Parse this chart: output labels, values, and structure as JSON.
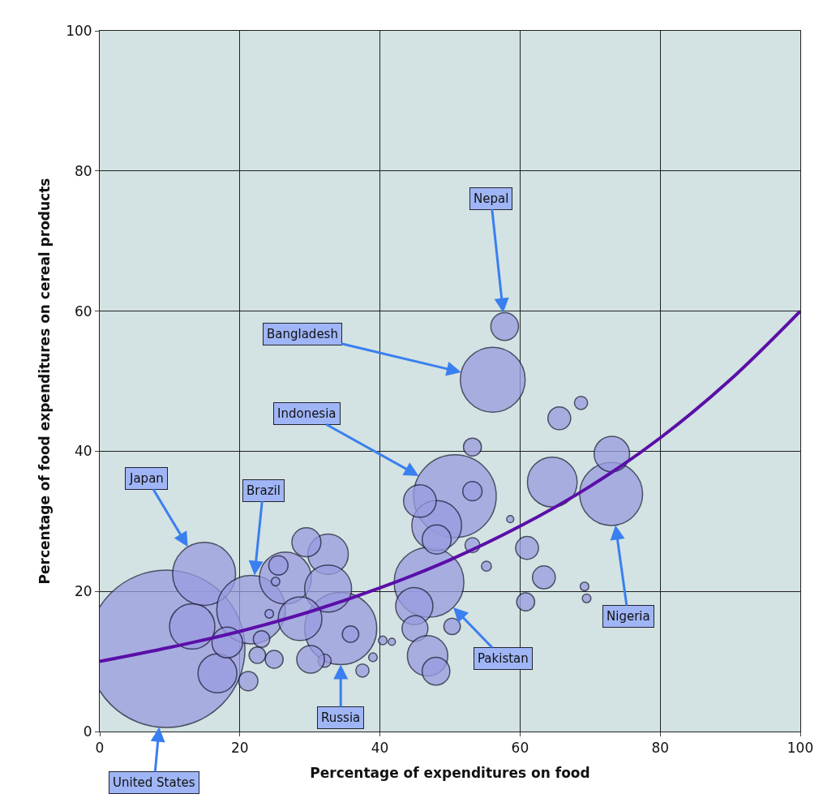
{
  "chart_data": {
    "type": "bubble",
    "xlabel": "Percentage of expenditures on food",
    "ylabel": "Percentage of food expenditures on cereal products",
    "xlim": [
      0,
      100
    ],
    "ylim": [
      0,
      100
    ],
    "xticks": [
      0,
      20,
      40,
      60,
      80,
      100
    ],
    "yticks": [
      0,
      20,
      40,
      60,
      80,
      100
    ],
    "grid": true,
    "legend": false,
    "series": [
      {
        "color": "#9a9ce0",
        "x": [
          9.5,
          14.9,
          21.6,
          34.4,
          56.1,
          57.8,
          50.7,
          47.0,
          73.0,
          64.6,
          73.1,
          53.2,
          65.6,
          68.7,
          48.1,
          48.1,
          45.7,
          53.2,
          61.0,
          63.4,
          60.8,
          55.2,
          53.2,
          58.6,
          44.9,
          45.0,
          46.8,
          48.0,
          50.3,
          69.2,
          69.5,
          37.5,
          39.0,
          40.4,
          41.7,
          16.8,
          18.2,
          21.2,
          13.2,
          26.5,
          32.6,
          29.5,
          32.6,
          28.6,
          35.8,
          32.1,
          30.1,
          25.5,
          24.9,
          22.5,
          23.1,
          25.1,
          24.2
        ],
        "values": [
          11.8,
          22.5,
          17.4,
          14.7,
          50.2,
          57.8,
          33.6,
          21.3,
          33.9,
          35.6,
          39.6,
          40.6,
          44.7,
          46.9,
          29.4,
          27.4,
          32.9,
          34.3,
          26.2,
          22.0,
          18.5,
          23.6,
          26.6,
          30.3,
          17.9,
          14.7,
          10.8,
          8.6,
          15.0,
          20.7,
          19.0,
          8.7,
          10.6,
          13.0,
          12.8,
          8.3,
          12.7,
          7.2,
          15.0,
          21.9,
          25.3,
          27.0,
          20.4,
          16.1,
          13.9,
          10.1,
          10.3,
          23.7,
          10.3,
          10.9,
          13.2,
          21.4,
          16.8
        ],
        "sizes": [
          1,
          0.16,
          0.19,
          0.21,
          0.17,
          0.031,
          0.276,
          0.197,
          0.16,
          0.1,
          0.051,
          0.013,
          0.021,
          0.007,
          0.1,
          0.034,
          0.043,
          0.015,
          0.021,
          0.021,
          0.013,
          0.004,
          0.009,
          0.002,
          0.056,
          0.027,
          0.066,
          0.031,
          0.011,
          0.003,
          0.003,
          0.007,
          0.003,
          0.003,
          0.002,
          0.061,
          0.038,
          0.015,
          0.083,
          0.109,
          0.066,
          0.034,
          0.089,
          0.077,
          0.011,
          0.007,
          0.031,
          0.015,
          0.013,
          0.011,
          0.011,
          0.003,
          0.003
        ]
      },
      {
        "type": "line",
        "color": "#5a0fa8",
        "x": [
          0,
          10,
          20,
          30,
          40,
          50,
          60,
          70,
          80,
          90,
          100
        ],
        "values": [
          10,
          12,
          14.3,
          17.1,
          20.5,
          24.5,
          29.3,
          35,
          41.9,
          50.2,
          60
        ]
      }
    ],
    "annotations": [
      {
        "text": "Nepal",
        "x": 57.8,
        "y": 57.8
      },
      {
        "text": "Bangladesh",
        "x": 56.1,
        "y": 50.2
      },
      {
        "text": "Indonesia",
        "x": 50.7,
        "y": 33.6
      },
      {
        "text": "Japan",
        "x": 14.9,
        "y": 22.5
      },
      {
        "text": "Brazil",
        "x": 21.6,
        "y": 17.4
      },
      {
        "text": "Russia",
        "x": 34.4,
        "y": 14.7
      },
      {
        "text": "United States",
        "x": 9.5,
        "y": 11.8
      },
      {
        "text": "Pakistan",
        "x": 47.0,
        "y": 21.3
      },
      {
        "text": "Nigeria",
        "x": 73.0,
        "y": 33.9
      }
    ]
  }
}
